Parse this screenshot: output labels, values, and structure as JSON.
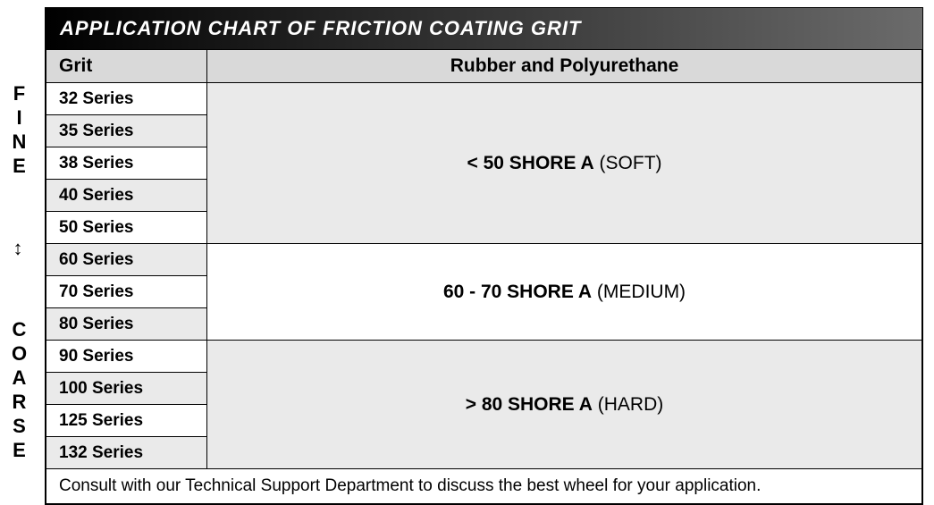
{
  "title": "APPLICATION CHART OF FRICTION COATING GRIT",
  "side": {
    "top": "FINE",
    "arrow": "↕",
    "bottom": "COARSE"
  },
  "columns": {
    "grit": "Grit",
    "material": "Rubber and Polyurethane"
  },
  "grit_series": [
    "32 Series",
    "35 Series",
    "38 Series",
    "40 Series",
    "50 Series",
    "60 Series",
    "70 Series",
    "80 Series",
    "90 Series",
    "100 Series",
    "125 Series",
    "132 Series"
  ],
  "ranges": {
    "soft": {
      "bold": "< 50 SHORE A",
      "note": "(SOFT)",
      "rowspan": 5,
      "bg": "#eaeaea"
    },
    "medium": {
      "bold": "60 - 70 SHORE A",
      "note": "(MEDIUM)",
      "rowspan": 3,
      "bg": "#ffffff"
    },
    "hard": {
      "bold": "> 80 SHORE A",
      "note": "(HARD)",
      "rowspan": 4,
      "bg": "#eaeaea"
    }
  },
  "row_alt_bg": [
    "#ffffff",
    "#eaeaea"
  ],
  "footer": "Consult with our Technical Support Department to discuss the best wheel for your application.",
  "colors": {
    "title_gradient_start": "#000000",
    "title_gradient_end": "#6b6b6b",
    "header_bg": "#d9d9d9",
    "alt_row_bg": "#eaeaea",
    "border": "#000000",
    "text": "#000000"
  },
  "fonts": {
    "title_size_pt": 17,
    "header_size_pt": 16,
    "cell_size_pt": 14
  }
}
